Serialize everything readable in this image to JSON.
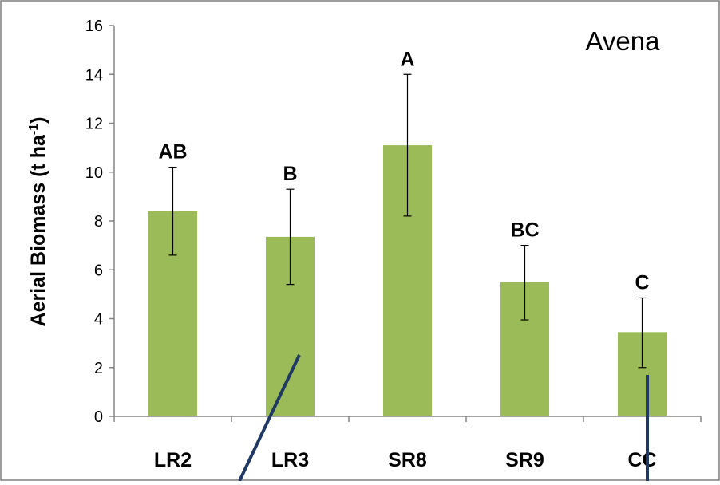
{
  "chart_data": {
    "type": "bar",
    "title": "Avena",
    "ylabel": "Aerial Biomass (t ha",
    "ylabel_superscript": "-1",
    "ylabel_close": ")",
    "xlabel": "",
    "ylim": [
      0,
      16
    ],
    "yticks": [
      "0",
      "2",
      "4",
      "6",
      "8",
      "10",
      "12",
      "14",
      "16"
    ],
    "categories": [
      "LR2",
      "LR3",
      "SR8",
      "SR9",
      "CC"
    ],
    "values": [
      8.4,
      7.35,
      11.1,
      5.5,
      3.45
    ],
    "error_upper": [
      10.2,
      9.3,
      14.0,
      7.0,
      4.85
    ],
    "error_lower": [
      6.6,
      5.4,
      8.2,
      3.95,
      2.0
    ],
    "significance_letters": [
      "AB",
      "B",
      "A",
      "BC",
      "C"
    ],
    "bar_color": "#9bbb59",
    "annotation_line_color": "#1f3864",
    "grid": false,
    "legend": "none"
  }
}
